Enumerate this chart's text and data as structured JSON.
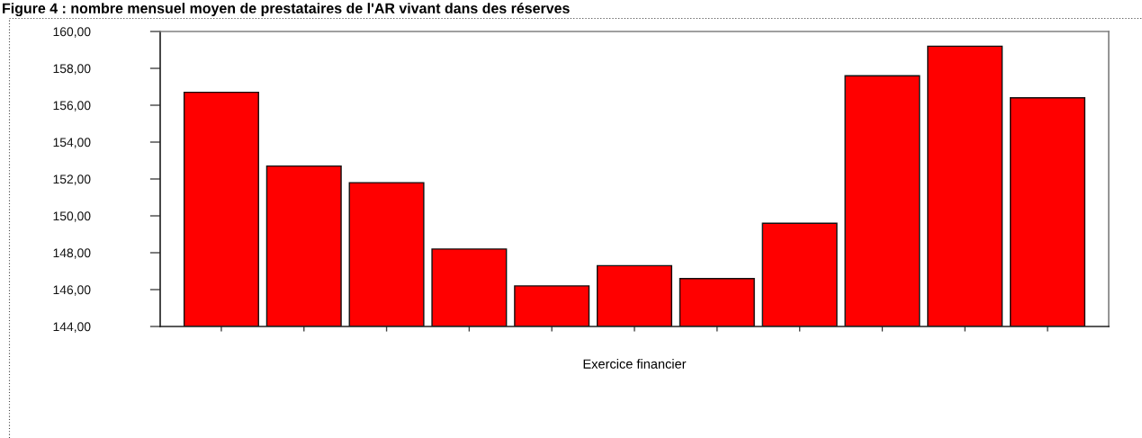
{
  "chart_data": {
    "type": "bar",
    "title": "Figure 4 : nombre mensuel moyen de prestataires de l'AR vivant dans des réserves",
    "xlabel": "Exercice financier",
    "categories": [
      null,
      null,
      null,
      null,
      null,
      null,
      null,
      null,
      null,
      null,
      null
    ],
    "values": [
      156.7,
      152.7,
      151.8,
      148.2,
      146.2,
      147.3,
      146.6,
      149.6,
      157.6,
      159.2,
      156.4
    ],
    "color": "#ff0000",
    "ylim": [
      144,
      160
    ],
    "yticks": [
      {
        "value": 144,
        "label": "144,00"
      },
      {
        "value": 146,
        "label": "146,00"
      },
      {
        "value": 148,
        "label": "148,00"
      },
      {
        "value": 150,
        "label": "150,00"
      },
      {
        "value": 152,
        "label": "152,00"
      },
      {
        "value": 154,
        "label": "154,00"
      },
      {
        "value": 156,
        "label": "156,00"
      },
      {
        "value": 158,
        "label": "158,00"
      },
      {
        "value": 160,
        "label": "160,00"
      }
    ],
    "tick_labels": "y"
  }
}
